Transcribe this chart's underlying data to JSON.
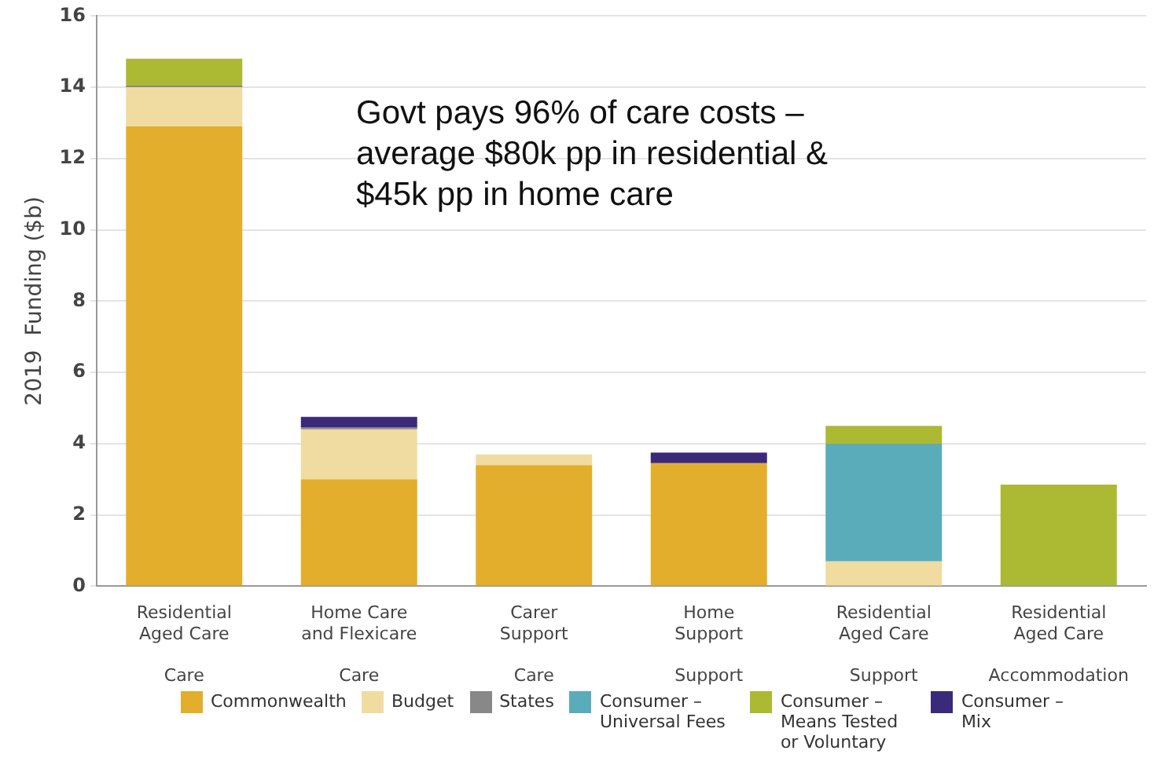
{
  "chart_data": {
    "type": "bar",
    "stacked": true,
    "ylabel": "2019  Funding ($b)",
    "categories": [
      "Residential\nAged Care\n\nCare",
      "Home Care\nand Flexicare\n\nCare",
      "Carer\nSupport\n\nCare",
      "Home\nSupport\n\nSupport",
      "Residential\nAged Care\n\nSupport",
      "Residential\nAged Care\n\nAccommodation"
    ],
    "series": [
      {
        "name": "Commonwealth",
        "color": "#e3ae2c",
        "values": [
          12.9,
          3.0,
          3.4,
          3.45,
          null,
          null
        ]
      },
      {
        "name": "Budget",
        "color": "#f0dca0",
        "values": [
          1.1,
          1.4,
          0.3,
          null,
          0.7,
          null
        ]
      },
      {
        "name": "States",
        "color": "#888888",
        "values": [
          0.05,
          0.05,
          null,
          null,
          null,
          null
        ]
      },
      {
        "name": "Consumer – Universal Fees",
        "color": "#5aacbb",
        "values": [
          null,
          null,
          null,
          null,
          3.3,
          null
        ]
      },
      {
        "name": "Consumer – Means Tested or Voluntary",
        "color": "#acb933",
        "values": [
          0.75,
          null,
          null,
          null,
          0.5,
          2.85
        ]
      },
      {
        "name": "Consumer – Mix",
        "color": "#3b2a7a",
        "values": [
          null,
          0.3,
          null,
          0.3,
          null,
          null
        ]
      }
    ],
    "ylim": [
      0,
      16
    ],
    "yticks": [
      0,
      2,
      4,
      6,
      8,
      10,
      12,
      14,
      16
    ],
    "grid": "y",
    "legend": "bottom",
    "annotations": [
      "Govt pays 96% of care costs – average $80k pp in residential & $45k pp in home care"
    ]
  }
}
